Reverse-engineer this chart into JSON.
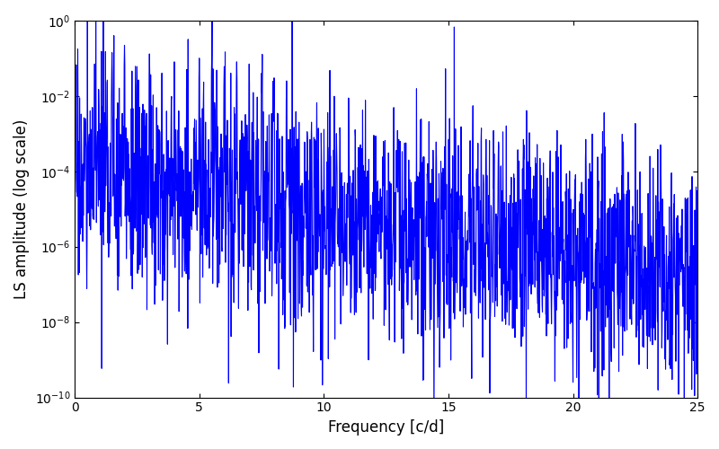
{
  "title": "",
  "xlabel": "Frequency [c/d]",
  "ylabel": "LS amplitude (log scale)",
  "xlim": [
    0,
    25
  ],
  "ylim_log": [
    1e-10,
    1.0
  ],
  "color": "#0000FF",
  "linewidth": 0.8,
  "figsize": [
    8.0,
    5.0
  ],
  "dpi": 100,
  "freq_max": 25.0,
  "n_points": 2000,
  "seed": 17,
  "base_log_amplitude": -4.0,
  "noise_sigma": 1.5,
  "decay_rate": 0.12
}
